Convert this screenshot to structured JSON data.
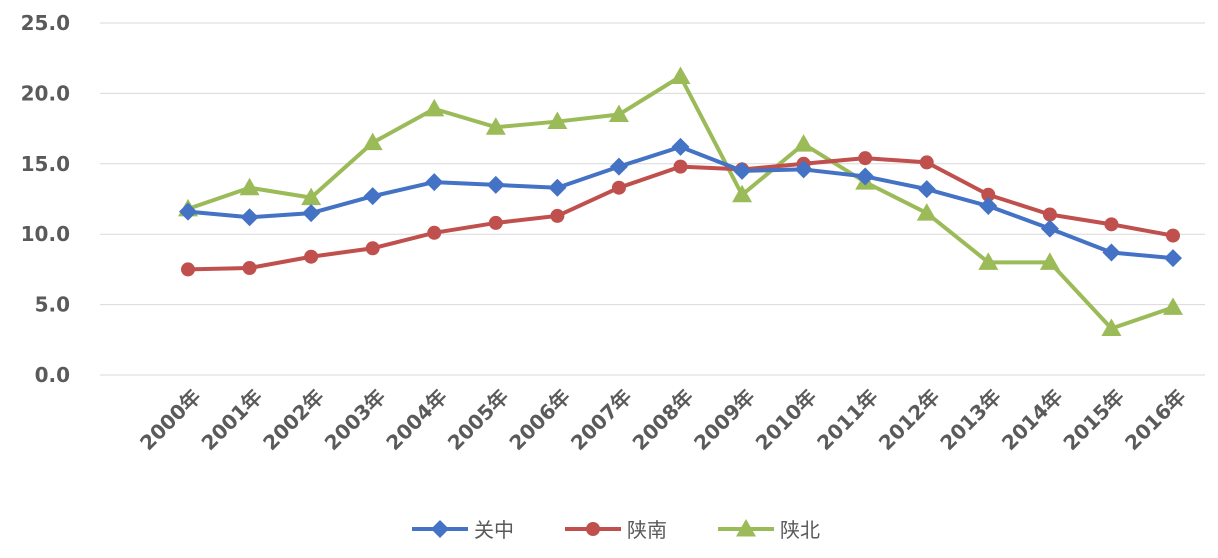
{
  "chart_data": {
    "type": "line",
    "categories": [
      "2000年",
      "2001年",
      "2002年",
      "2003年",
      "2004年",
      "2005年",
      "2006年",
      "2007年",
      "2008年",
      "2009年",
      "2010年",
      "2011年",
      "2012年",
      "2013年",
      "2014年",
      "2015年",
      "2016年"
    ],
    "ylim": [
      0,
      25
    ],
    "yticks": [
      "0.0",
      "5.0",
      "10.0",
      "15.0",
      "20.0",
      "25.0"
    ],
    "ytick_values": [
      0,
      5,
      10,
      15,
      20,
      25
    ],
    "grid": true,
    "legend_position": "bottom",
    "series": [
      {
        "name": "关中",
        "color": "#4472c4",
        "marker": "diamond",
        "values": [
          11.6,
          11.2,
          11.5,
          12.7,
          13.7,
          13.5,
          13.3,
          14.8,
          16.2,
          14.5,
          14.6,
          14.1,
          13.2,
          12.0,
          10.4,
          8.7,
          8.3
        ]
      },
      {
        "name": "陕南",
        "color": "#c0504d",
        "marker": "circle",
        "values": [
          7.5,
          7.6,
          8.4,
          9.0,
          10.1,
          10.8,
          11.3,
          13.3,
          14.8,
          14.6,
          15.0,
          15.4,
          15.1,
          12.8,
          11.4,
          10.7,
          9.9
        ]
      },
      {
        "name": "陕北",
        "color": "#9bbb59",
        "marker": "triangle",
        "values": [
          11.8,
          13.3,
          12.6,
          16.5,
          18.9,
          17.6,
          18.0,
          18.5,
          21.2,
          12.8,
          16.4,
          13.7,
          11.5,
          8.0,
          8.0,
          3.3,
          4.8
        ]
      }
    ]
  }
}
